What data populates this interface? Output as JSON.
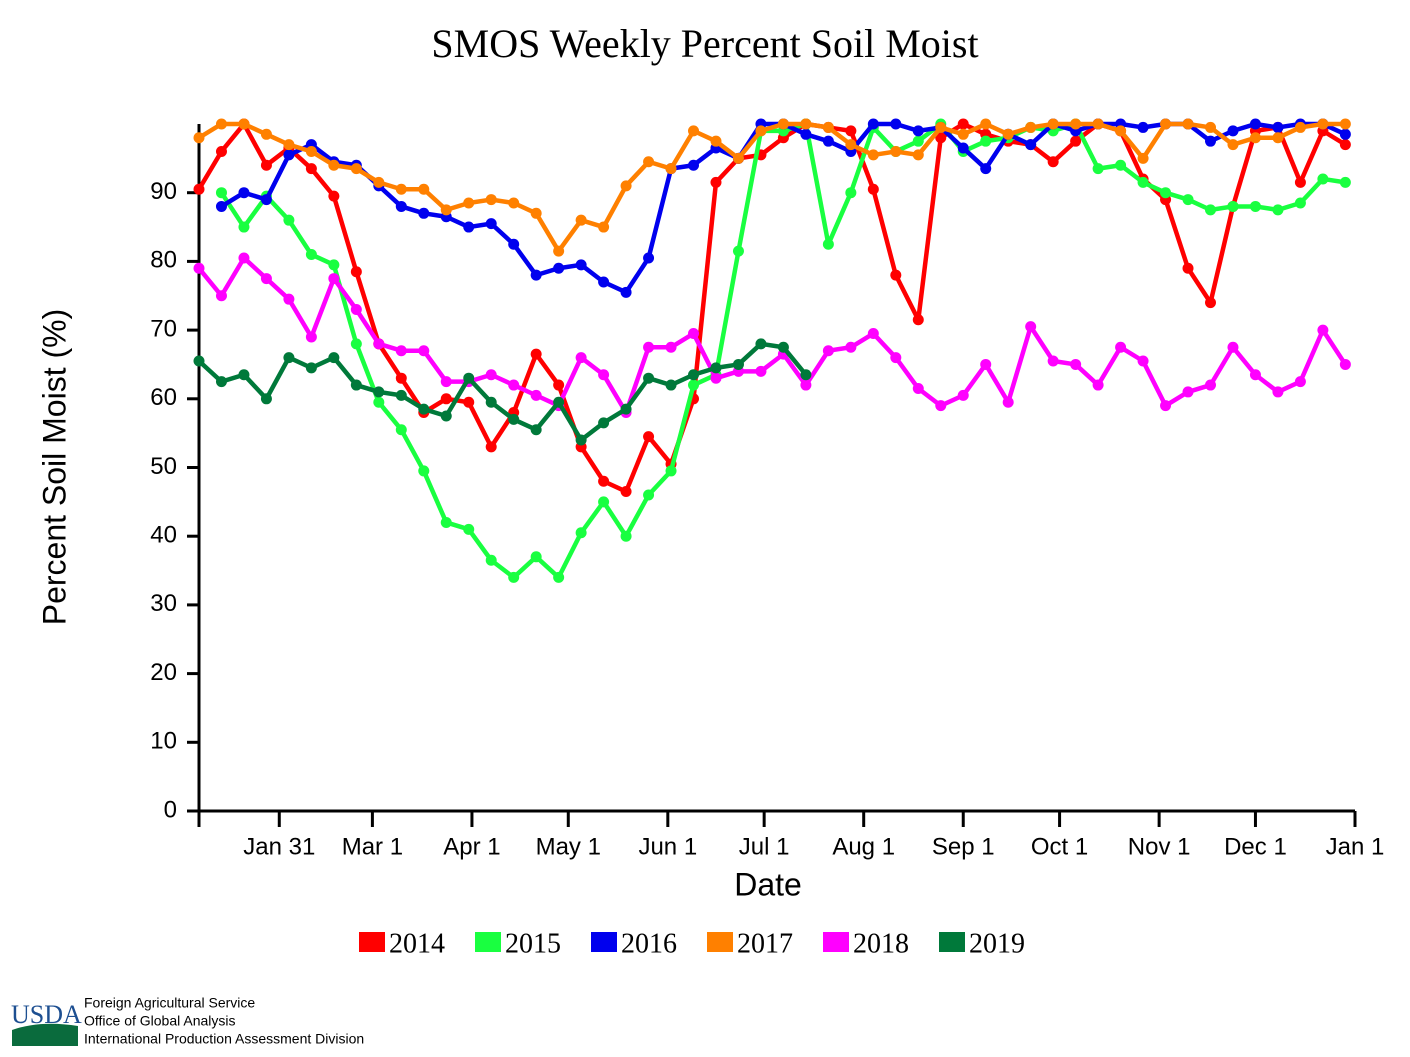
{
  "chart_data": {
    "type": "line",
    "title": "SMOS Weekly Percent Soil Moist",
    "x_label": "Date",
    "y_label": "Percent Soil Moist (%)",
    "xlim": [
      6,
      366
    ],
    "ylim": [
      0,
      100
    ],
    "xticks": [
      {
        "value": 31,
        "label": "Jan 31"
      },
      {
        "value": 60,
        "label": "Mar 1"
      },
      {
        "value": 91,
        "label": "Apr 1"
      },
      {
        "value": 121,
        "label": "May 1"
      },
      {
        "value": 152,
        "label": "Jun 1"
      },
      {
        "value": 182,
        "label": "Jul 1"
      },
      {
        "value": 213,
        "label": "Aug 1"
      },
      {
        "value": 244,
        "label": "Sep 1"
      },
      {
        "value": 274,
        "label": "Oct 1"
      },
      {
        "value": 305,
        "label": "Nov 1"
      },
      {
        "value": 335,
        "label": "Dec 1"
      },
      {
        "value": 366,
        "label": "Jan 1"
      }
    ],
    "yticks": [
      0,
      10,
      20,
      30,
      40,
      50,
      60,
      70,
      80,
      90
    ],
    "legend": "bottom",
    "x": [
      6,
      13,
      20,
      27,
      34,
      41,
      48,
      55,
      62,
      69,
      76,
      83,
      90,
      97,
      104,
      111,
      118,
      125,
      132,
      139,
      146,
      153,
      160,
      167,
      174,
      181,
      188,
      195,
      202,
      209,
      216,
      223,
      230,
      237,
      244,
      251,
      258,
      265,
      272,
      279,
      286,
      293,
      300,
      307,
      314,
      321,
      328,
      335,
      342,
      349,
      356,
      363
    ],
    "series": [
      {
        "name": "2014",
        "color": "#ff0000",
        "values": [
          90.5,
          96,
          100,
          94,
          96.5,
          93.5,
          89.5,
          78.5,
          68,
          63,
          58,
          60,
          59.5,
          53,
          58,
          66.5,
          62,
          53,
          48,
          46.5,
          54.5,
          50.5,
          60,
          91.5,
          95,
          95.5,
          98,
          100,
          99.5,
          99,
          90.5,
          78,
          71.5,
          98,
          100,
          98.5,
          97.5,
          97,
          94.5,
          97.5,
          100,
          99,
          92,
          89,
          79,
          74,
          88,
          99,
          99.5,
          91.5,
          99,
          97
        ]
      },
      {
        "name": "2015",
        "color": "#19ff40",
        "values": [
          null,
          90,
          85,
          89.5,
          86,
          81,
          79.5,
          68,
          59.5,
          55.5,
          49.5,
          42,
          41,
          36.5,
          34,
          37,
          34,
          40.5,
          45,
          40,
          46,
          49.5,
          62,
          63.5,
          81.5,
          99,
          99,
          100,
          82.5,
          90,
          99.5,
          96,
          97.5,
          100,
          96,
          97.5,
          98,
          99.5,
          99,
          100,
          93.5,
          94,
          91.5,
          90,
          89,
          87.5,
          88,
          88,
          87.5,
          88.5,
          92,
          91.5
        ]
      },
      {
        "name": "2016",
        "color": "#0000ee",
        "values": [
          null,
          88,
          90,
          89,
          95.5,
          97,
          94.5,
          94,
          91,
          88,
          87,
          86.5,
          85,
          85.5,
          82.5,
          78,
          79,
          79.5,
          77,
          75.5,
          80.5,
          93.5,
          94,
          96.5,
          95,
          100,
          100,
          98.5,
          97.5,
          96,
          100,
          100,
          99,
          99.5,
          96.5,
          93.5,
          98.5,
          97,
          100,
          99,
          100,
          100,
          99.5,
          100,
          100,
          97.5,
          99,
          100,
          99.5,
          100,
          100,
          98.5
        ]
      },
      {
        "name": "2017",
        "color": "#ff8000",
        "values": [
          98,
          100,
          100,
          98.5,
          97,
          96,
          94,
          93.5,
          91.5,
          90.5,
          90.5,
          87.5,
          88.5,
          89,
          88.5,
          87,
          81.5,
          86,
          85,
          91,
          94.5,
          93.5,
          99,
          97.5,
          95,
          99,
          100,
          100,
          99.5,
          97,
          95.5,
          96,
          95.5,
          99.5,
          98.5,
          100,
          98.5,
          99.5,
          100,
          100,
          100,
          99,
          95,
          100,
          100,
          99.5,
          97,
          98,
          98,
          99.5,
          100,
          100
        ]
      },
      {
        "name": "2018",
        "color": "#ff00ff",
        "values": [
          79,
          75,
          80.5,
          77.5,
          74.5,
          69,
          77.5,
          73,
          68,
          67,
          67,
          62.5,
          62.5,
          63.5,
          62,
          60.5,
          59,
          66,
          63.5,
          58,
          67.5,
          67.5,
          69.5,
          63,
          64,
          64,
          66.5,
          62,
          67,
          67.5,
          69.5,
          66,
          61.5,
          59,
          60.5,
          65,
          59.5,
          70.5,
          65.5,
          65,
          62,
          67.5,
          65.5,
          59,
          61,
          62,
          67.5,
          63.5,
          61,
          62.5,
          70,
          65
        ]
      },
      {
        "name": "2019",
        "color": "#00793a",
        "values": [
          65.5,
          62.5,
          63.5,
          60,
          66,
          64.5,
          66,
          62,
          61,
          60.5,
          58.5,
          57.5,
          63,
          59.5,
          57,
          55.5,
          59.5,
          54,
          56.5,
          58.5,
          63,
          62,
          63.5,
          64.5,
          65,
          68,
          67.5,
          63.5,
          null,
          null,
          null,
          null,
          null,
          null,
          null,
          null,
          null,
          null,
          null,
          null,
          null,
          null,
          null,
          null,
          null,
          null,
          null,
          null,
          null,
          null,
          null,
          null
        ]
      }
    ]
  },
  "footer": {
    "logo": "USDA",
    "lines": [
      "Foreign Agricultural Service",
      "Office of Global Analysis",
      "International Production Assessment Division"
    ]
  }
}
